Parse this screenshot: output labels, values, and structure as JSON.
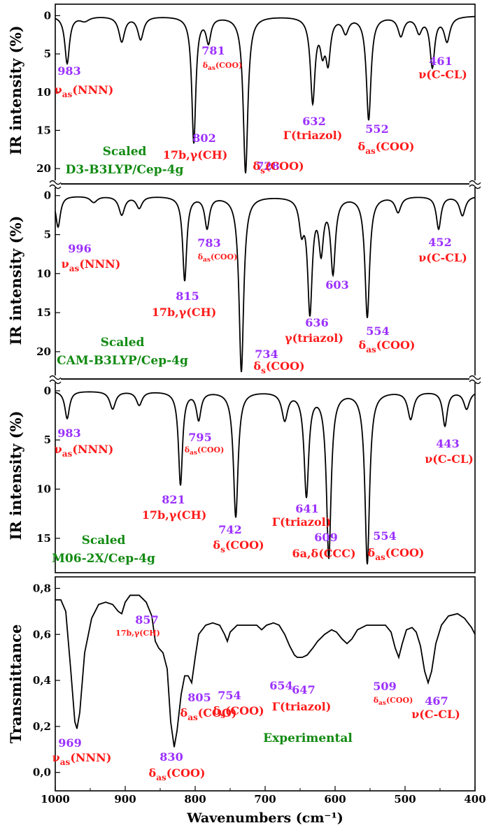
{
  "x_axis": {
    "title": "Wavenumbers (cm⁻¹)",
    "tick_labels": [
      "1000",
      "900",
      "800",
      "700",
      "600",
      "500",
      "400"
    ]
  },
  "colors": {
    "wavenumber_label": "#9b30ff",
    "assignment_label": "#ff1a1a",
    "method_label": "#118a11",
    "curve": "#000000"
  },
  "chart_data": [
    {
      "type": "line",
      "name": "d3-b3lyp",
      "ylabel": "IR intensity (%)",
      "y_inverted": true,
      "ylim": [
        -1.5,
        22
      ],
      "xlim": [
        1000,
        400
      ],
      "yticks": [
        0,
        5,
        10,
        15,
        20
      ],
      "ytick_labels": [
        "0",
        "5",
        "10",
        "15",
        "20"
      ],
      "method": [
        "Scaled",
        "D3-B3LYP/Cep-4g"
      ],
      "peaks": [
        {
          "x": 983,
          "y": 6.2,
          "w": 4
        },
        {
          "x": 958,
          "y": 0.6,
          "w": 8
        },
        {
          "x": 905,
          "y": 3.3,
          "w": 5
        },
        {
          "x": 878,
          "y": 3.0,
          "w": 5
        },
        {
          "x": 802,
          "y": 16.5,
          "w": 3.5
        },
        {
          "x": 781,
          "y": 3.2,
          "w": 4
        },
        {
          "x": 728,
          "y": 20.5,
          "w": 4
        },
        {
          "x": 632,
          "y": 11.0,
          "w": 4
        },
        {
          "x": 618,
          "y": 3.8,
          "w": 4
        },
        {
          "x": 610,
          "y": 5.5,
          "w": 4
        },
        {
          "x": 585,
          "y": 2.0,
          "w": 5
        },
        {
          "x": 552,
          "y": 13.5,
          "w": 4
        },
        {
          "x": 506,
          "y": 2.5,
          "w": 5
        },
        {
          "x": 480,
          "y": 2.0,
          "w": 5
        },
        {
          "x": 461,
          "y": 6.5,
          "w": 4
        },
        {
          "x": 440,
          "y": 3.2,
          "w": 5
        }
      ],
      "labels": [
        {
          "num": "983",
          "asg": "ν",
          "sub": "as",
          "rest": "(NNN)"
        },
        {
          "num": "781",
          "asg": "δ",
          "sub": "as",
          "rest": "(COO)"
        },
        {
          "num": "802",
          "asg": "17b,γ(CH)",
          "sub": "",
          "rest": ""
        },
        {
          "num": "728",
          "asg": "δ",
          "sub": "s",
          "rest": "(COO)"
        },
        {
          "num": "632",
          "asg": "Γ(triazol)",
          "sub": "",
          "rest": ""
        },
        {
          "num": "552",
          "asg": "δ",
          "sub": "as",
          "rest": "(COO)"
        },
        {
          "num": "461",
          "asg": "ν(C-CL)",
          "sub": "",
          "rest": ""
        }
      ]
    },
    {
      "type": "line",
      "name": "cam-b3lyp",
      "ylabel": "IR intensity (%)",
      "y_inverted": true,
      "ylim": [
        -1.5,
        23.5
      ],
      "xlim": [
        1000,
        400
      ],
      "yticks": [
        0,
        5,
        10,
        15,
        20
      ],
      "ytick_labels": [
        "0",
        "5",
        "10",
        "15",
        "20"
      ],
      "method": [
        "Scaled",
        "CAM-B3LYP/Cep-4g"
      ],
      "peaks": [
        {
          "x": 996,
          "y": 4.0,
          "w": 4
        },
        {
          "x": 945,
          "y": 0.8,
          "w": 6
        },
        {
          "x": 905,
          "y": 2.4,
          "w": 5
        },
        {
          "x": 880,
          "y": 1.5,
          "w": 5
        },
        {
          "x": 815,
          "y": 10.8,
          "w": 3.5
        },
        {
          "x": 783,
          "y": 4.0,
          "w": 4
        },
        {
          "x": 734,
          "y": 22.5,
          "w": 4
        },
        {
          "x": 648,
          "y": 3.8,
          "w": 4
        },
        {
          "x": 636,
          "y": 14.5,
          "w": 4
        },
        {
          "x": 620,
          "y": 6.5,
          "w": 4
        },
        {
          "x": 603,
          "y": 9.5,
          "w": 4
        },
        {
          "x": 554,
          "y": 15.5,
          "w": 4
        },
        {
          "x": 510,
          "y": 2.0,
          "w": 5
        },
        {
          "x": 452,
          "y": 4.2,
          "w": 4
        },
        {
          "x": 418,
          "y": 2.5,
          "w": 5
        }
      ],
      "labels": [
        {
          "num": "996",
          "asg": "ν",
          "sub": "as",
          "rest": "(NNN)"
        },
        {
          "num": "783",
          "asg": "δ",
          "sub": "as",
          "rest": "(COO)"
        },
        {
          "num": "815",
          "asg": "17b,γ(CH)",
          "sub": "",
          "rest": ""
        },
        {
          "num": "734",
          "asg": "δ",
          "sub": "s",
          "rest": "(COO)"
        },
        {
          "num": "636",
          "asg": "γ(triazol)",
          "sub": "",
          "rest": ""
        },
        {
          "num": "603",
          "asg": "",
          "sub": "",
          "rest": ""
        },
        {
          "num": "554",
          "asg": "δ",
          "sub": "as",
          "rest": "(COO)"
        },
        {
          "num": "452",
          "asg": "ν(C-CL)",
          "sub": "",
          "rest": ""
        }
      ]
    },
    {
      "type": "line",
      "name": "m06-2x",
      "ylabel": "IR intensity (%)",
      "y_inverted": true,
      "ylim": [
        -1.2,
        18.5
      ],
      "xlim": [
        1000,
        400
      ],
      "yticks": [
        0,
        5,
        10,
        15
      ],
      "ytick_labels": [
        "0",
        "5",
        "10",
        "15"
      ],
      "method": [
        "Scaled",
        "M06-2X/Cep-4g"
      ],
      "peaks": [
        {
          "x": 983,
          "y": 2.8,
          "w": 4
        },
        {
          "x": 918,
          "y": 1.8,
          "w": 5
        },
        {
          "x": 880,
          "y": 1.4,
          "w": 5
        },
        {
          "x": 821,
          "y": 9.5,
          "w": 3.5
        },
        {
          "x": 795,
          "y": 2.8,
          "w": 4
        },
        {
          "x": 742,
          "y": 12.8,
          "w": 4
        },
        {
          "x": 672,
          "y": 2.8,
          "w": 5
        },
        {
          "x": 641,
          "y": 10.5,
          "w": 4
        },
        {
          "x": 609,
          "y": 16.8,
          "w": 4
        },
        {
          "x": 554,
          "y": 17.5,
          "w": 4
        },
        {
          "x": 492,
          "y": 2.8,
          "w": 5
        },
        {
          "x": 443,
          "y": 3.5,
          "w": 4
        },
        {
          "x": 412,
          "y": 1.8,
          "w": 5
        }
      ],
      "labels": [
        {
          "num": "983",
          "asg": "ν",
          "sub": "as",
          "rest": "(NNN)"
        },
        {
          "num": "795",
          "asg": "δ",
          "sub": "as",
          "rest": "(COO)"
        },
        {
          "num": "821",
          "asg": "17b,γ(CH)",
          "sub": "",
          "rest": ""
        },
        {
          "num": "742",
          "asg": "δ",
          "sub": "s",
          "rest": "(COO)"
        },
        {
          "num": "641",
          "asg": "Γ(triazol)",
          "sub": "",
          "rest": ""
        },
        {
          "num": "609",
          "asg": "6a,δ(CCC)",
          "sub": "",
          "rest": ""
        },
        {
          "num": "554",
          "asg": "δ",
          "sub": "as",
          "rest": "(COO)"
        },
        {
          "num": "443",
          "asg": "ν(C-CL)",
          "sub": "",
          "rest": ""
        }
      ]
    },
    {
      "type": "line",
      "name": "experimental",
      "ylabel": "Transmittance",
      "y_inverted": false,
      "ylim": [
        -0.08,
        0.85
      ],
      "xlim": [
        1000,
        400
      ],
      "yticks": [
        0.0,
        0.2,
        0.4,
        0.6,
        0.8
      ],
      "ytick_labels": [
        "0,0",
        "0,2",
        "0,4",
        "0,6",
        "0,8"
      ],
      "method": [
        "Experimental"
      ],
      "points": [
        [
          1000,
          0.75
        ],
        [
          992,
          0.75
        ],
        [
          985,
          0.7
        ],
        [
          978,
          0.45
        ],
        [
          972,
          0.22
        ],
        [
          969,
          0.19
        ],
        [
          965,
          0.26
        ],
        [
          958,
          0.52
        ],
        [
          948,
          0.67
        ],
        [
          938,
          0.73
        ],
        [
          928,
          0.74
        ],
        [
          918,
          0.73
        ],
        [
          910,
          0.7
        ],
        [
          905,
          0.69
        ],
        [
          900,
          0.74
        ],
        [
          893,
          0.77
        ],
        [
          880,
          0.77
        ],
        [
          870,
          0.74
        ],
        [
          862,
          0.68
        ],
        [
          857,
          0.57
        ],
        [
          852,
          0.54
        ],
        [
          846,
          0.52
        ],
        [
          840,
          0.45
        ],
        [
          835,
          0.22
        ],
        [
          830,
          0.11
        ],
        [
          826,
          0.18
        ],
        [
          820,
          0.34
        ],
        [
          815,
          0.42
        ],
        [
          810,
          0.42
        ],
        [
          805,
          0.39
        ],
        [
          800,
          0.5
        ],
        [
          795,
          0.6
        ],
        [
          785,
          0.64
        ],
        [
          775,
          0.65
        ],
        [
          765,
          0.64
        ],
        [
          758,
          0.6
        ],
        [
          754,
          0.57
        ],
        [
          750,
          0.61
        ],
        [
          740,
          0.64
        ],
        [
          725,
          0.64
        ],
        [
          712,
          0.64
        ],
        [
          705,
          0.62
        ],
        [
          698,
          0.64
        ],
        [
          688,
          0.65
        ],
        [
          680,
          0.64
        ],
        [
          672,
          0.6
        ],
        [
          665,
          0.55
        ],
        [
          658,
          0.51
        ],
        [
          654,
          0.5
        ],
        [
          650,
          0.5
        ],
        [
          647,
          0.5
        ],
        [
          640,
          0.51
        ],
        [
          632,
          0.54
        ],
        [
          625,
          0.57
        ],
        [
          615,
          0.6
        ],
        [
          605,
          0.62
        ],
        [
          598,
          0.61
        ],
        [
          590,
          0.58
        ],
        [
          583,
          0.56
        ],
        [
          576,
          0.58
        ],
        [
          568,
          0.62
        ],
        [
          555,
          0.64
        ],
        [
          540,
          0.64
        ],
        [
          528,
          0.64
        ],
        [
          520,
          0.61
        ],
        [
          514,
          0.54
        ],
        [
          509,
          0.5
        ],
        [
          504,
          0.56
        ],
        [
          498,
          0.62
        ],
        [
          490,
          0.63
        ],
        [
          484,
          0.61
        ],
        [
          478,
          0.55
        ],
        [
          472,
          0.44
        ],
        [
          467,
          0.39
        ],
        [
          462,
          0.44
        ],
        [
          456,
          0.56
        ],
        [
          448,
          0.64
        ],
        [
          438,
          0.68
        ],
        [
          425,
          0.69
        ],
        [
          415,
          0.67
        ],
        [
          405,
          0.63
        ],
        [
          400,
          0.6
        ]
      ],
      "labels": [
        {
          "num": "969",
          "asg": "ν",
          "sub": "as",
          "rest": "(NNN)"
        },
        {
          "num": "857",
          "asg": "17b,γ(CH)",
          "sub": "",
          "rest": ""
        },
        {
          "num": "830",
          "asg": "δ",
          "sub": "as",
          "rest": "(COO)"
        },
        {
          "num": "805",
          "asg": "δ",
          "sub": "as",
          "rest": "(COO)"
        },
        {
          "num": "754",
          "asg": "δ",
          "sub": "s",
          "rest": "(COO)"
        },
        {
          "num": "654",
          "asg": "",
          "sub": "",
          "rest": ""
        },
        {
          "num": "647",
          "asg": "Γ(triazol)",
          "sub": "",
          "rest": ""
        },
        {
          "num": "509",
          "asg": "δ",
          "sub": "as",
          "rest": "(COO)"
        },
        {
          "num": "467",
          "asg": "ν(C-CL)",
          "sub": "",
          "rest": ""
        }
      ]
    }
  ]
}
